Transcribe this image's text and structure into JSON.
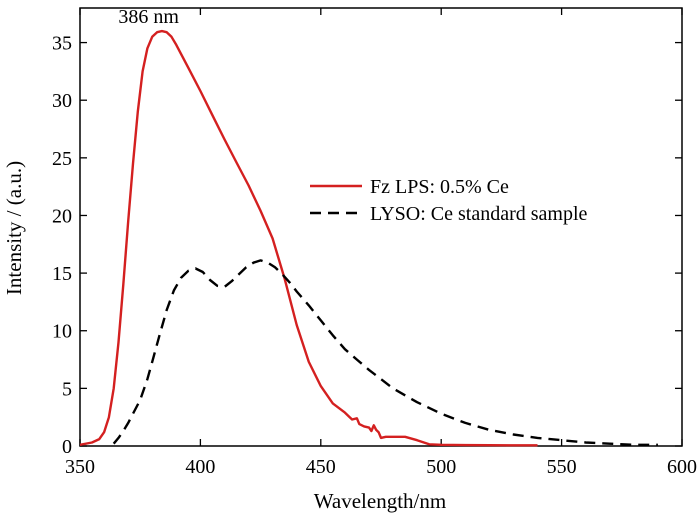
{
  "chart_data": {
    "type": "line",
    "title": "",
    "xlabel": "Wavelength/nm",
    "ylabel": "Intensity / (a.u.)",
    "xlim": [
      350,
      600
    ],
    "ylim": [
      0,
      38
    ],
    "xticks": [
      350,
      400,
      450,
      500,
      550,
      600
    ],
    "yticks": [
      0,
      5,
      10,
      15,
      20,
      25,
      30,
      35
    ],
    "grid": false,
    "legend_position": "right",
    "annotation": {
      "text": "386 nm",
      "x": 386,
      "y": 36.0
    },
    "series": [
      {
        "name": "Fz LPS: 0.5% Ce",
        "color": "#d42020",
        "style": "solid",
        "x": [
          350,
          355,
          358,
          360,
          362,
          364,
          366,
          368,
          370,
          372,
          374,
          376,
          378,
          380,
          382,
          384,
          386,
          388,
          390,
          392,
          395,
          400,
          405,
          410,
          415,
          420,
          425,
          430,
          435,
          440,
          445,
          450,
          455,
          460,
          462,
          463,
          465,
          466,
          468,
          470,
          471,
          472,
          473,
          474,
          475,
          477,
          480,
          485,
          490,
          495,
          500,
          510,
          520,
          530,
          540
        ],
        "y": [
          0.1,
          0.3,
          0.6,
          1.2,
          2.5,
          5.0,
          9.0,
          14.0,
          19.5,
          24.5,
          29.0,
          32.5,
          34.5,
          35.5,
          35.9,
          36.0,
          35.9,
          35.5,
          34.8,
          34.0,
          32.8,
          30.8,
          28.7,
          26.6,
          24.6,
          22.6,
          20.4,
          18.0,
          14.5,
          10.5,
          7.3,
          5.2,
          3.7,
          2.9,
          2.5,
          2.3,
          2.4,
          1.9,
          1.7,
          1.6,
          1.3,
          1.8,
          1.4,
          1.2,
          0.7,
          0.8,
          0.8,
          0.8,
          0.5,
          0.15,
          0.1,
          0.08,
          0.07,
          0.06,
          0.06
        ]
      },
      {
        "name": "LYSO: Ce standard sample",
        "color": "#000000",
        "style": "dashed",
        "x": [
          364,
          366,
          368,
          370,
          372,
          375,
          378,
          380,
          383,
          386,
          389,
          392,
          395,
          398,
          401,
          404,
          407,
          410,
          413,
          416,
          419,
          422,
          425,
          428,
          431,
          434,
          437,
          440,
          445,
          450,
          455,
          460,
          465,
          470,
          475,
          480,
          490,
          500,
          510,
          520,
          530,
          540,
          550,
          560,
          570,
          580,
          590
        ],
        "y": [
          0.2,
          0.7,
          1.3,
          2.0,
          2.8,
          4.0,
          5.8,
          7.3,
          9.6,
          11.8,
          13.5,
          14.6,
          15.2,
          15.4,
          15.1,
          14.4,
          13.9,
          13.8,
          14.3,
          14.9,
          15.5,
          15.9,
          16.1,
          15.9,
          15.5,
          14.9,
          14.2,
          13.4,
          12.2,
          10.9,
          9.6,
          8.4,
          7.5,
          6.6,
          5.8,
          5.0,
          3.8,
          2.8,
          2.0,
          1.4,
          1.0,
          0.7,
          0.5,
          0.3,
          0.2,
          0.1,
          0.1
        ]
      }
    ]
  }
}
